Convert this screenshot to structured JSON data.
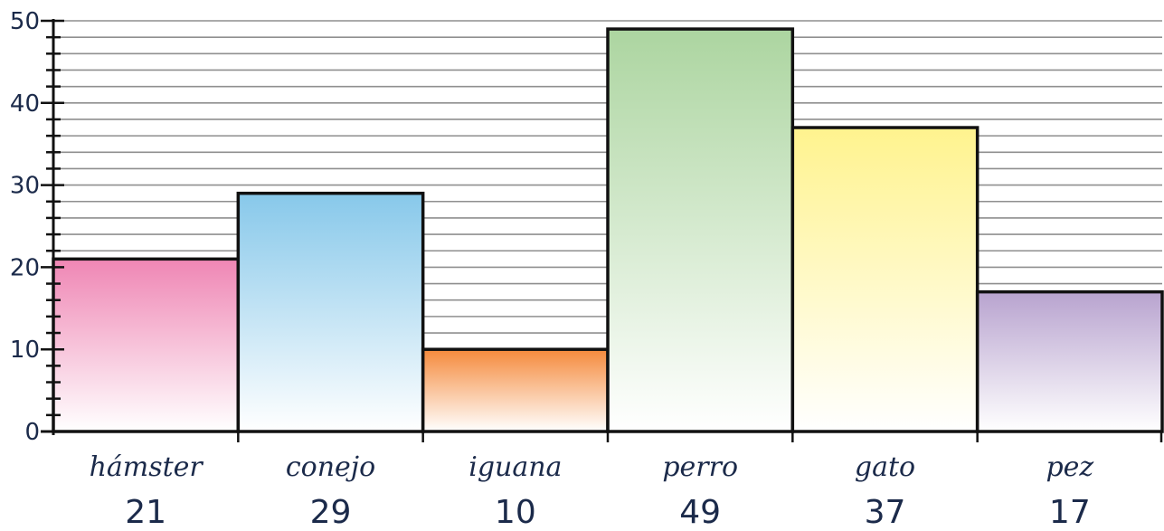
{
  "chart_data": {
    "type": "bar",
    "categories": [
      "hámster",
      "conejo",
      "iguana",
      "perro",
      "gato",
      "pez"
    ],
    "values": [
      21,
      29,
      10,
      49,
      37,
      17
    ],
    "value_labels": [
      "21",
      "29",
      "10",
      "49",
      "37",
      "17"
    ],
    "ylim": [
      0,
      50
    ],
    "y_ticks": [
      0,
      10,
      20,
      30,
      40,
      50
    ],
    "y_tick_labels": [
      "0",
      "10",
      "20",
      "30",
      "40",
      "50"
    ],
    "minor_tick_step": 2,
    "grid": true,
    "bar_colors": [
      "#ef86b4",
      "#87c8ea",
      "#f58a3c",
      "#acd5a0",
      "#fff38e",
      "#b8a3cf"
    ],
    "title": "",
    "xlabel": "",
    "ylabel": ""
  }
}
